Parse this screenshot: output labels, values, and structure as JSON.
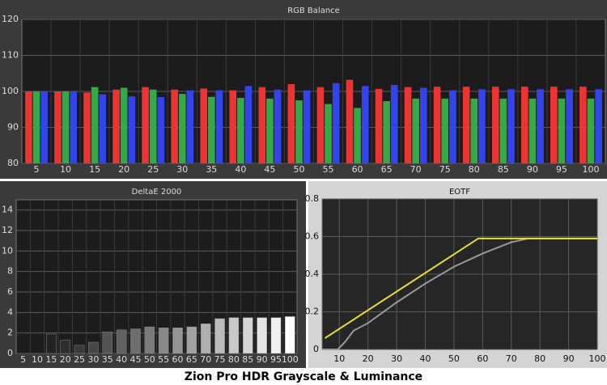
{
  "caption": "Zion Pro HDR Grayscale & Luminance",
  "chart_data": [
    {
      "type": "bar",
      "title": "RGB Balance",
      "categories": [
        "5",
        "10",
        "15",
        "20",
        "25",
        "30",
        "35",
        "40",
        "45",
        "50",
        "55",
        "60",
        "65",
        "70",
        "75",
        "80",
        "85",
        "90",
        "95",
        "100"
      ],
      "series": [
        {
          "color": "#ee3333",
          "values": [
            100,
            100,
            99.7,
            100.5,
            101.2,
            100.5,
            100.8,
            100.3,
            101.2,
            102,
            101.2,
            103.2,
            100.7,
            101.2,
            101.3,
            101.3,
            101.3,
            101.3,
            101.3,
            101.3
          ]
        },
        {
          "color": "#33aa44",
          "values": [
            100,
            100,
            101.2,
            101,
            100.5,
            99.3,
            98.5,
            98.2,
            98,
            97.5,
            96.5,
            95.4,
            97.3,
            98,
            98,
            98,
            98,
            98,
            98,
            98
          ]
        },
        {
          "color": "#3344ee",
          "values": [
            100,
            100,
            99.2,
            98.6,
            98.4,
            100.3,
            100.3,
            101.5,
            100.5,
            100.3,
            102.3,
            101.5,
            101.8,
            101,
            100.3,
            100.6,
            100.6,
            100.6,
            100.6,
            100.6
          ]
        }
      ],
      "ylim": [
        80,
        120
      ],
      "yticks": [
        80,
        90,
        100,
        110,
        120
      ],
      "grid": true
    },
    {
      "type": "bar",
      "title": "DeltaE 2000",
      "categories": [
        "5",
        "10",
        "15",
        "20",
        "25",
        "30",
        "35",
        "40",
        "45",
        "50",
        "55",
        "60",
        "65",
        "70",
        "75",
        "80",
        "85",
        "90",
        "95",
        "100"
      ],
      "values": [
        0,
        0,
        1.9,
        1.3,
        0.8,
        1.1,
        2.1,
        2.3,
        2.4,
        2.6,
        2.5,
        2.5,
        2.6,
        2.9,
        3.4,
        3.5,
        3.5,
        3.5,
        3.5,
        3.6
      ],
      "colors": [
        "#0d0d0d",
        "#1a1a1a",
        "#222222",
        "#2e2e2e",
        "#3a3a3a",
        "#474747",
        "#545454",
        "#616161",
        "#6e6e6e",
        "#7b7b7b",
        "#888888",
        "#959595",
        "#a2a2a2",
        "#afafaf",
        "#bcbcbc",
        "#c9c9c9",
        "#d6d6d6",
        "#e3e3e3",
        "#f0f0f0",
        "#ffffff"
      ],
      "ylim": [
        0,
        15
      ],
      "yticks": [
        0,
        2,
        4,
        6,
        8,
        10,
        12,
        14
      ],
      "grid": true
    },
    {
      "type": "line",
      "title": "EOTF",
      "series": [
        {
          "color": "#e8e030",
          "x": [
            5,
            58.5,
            100
          ],
          "values": [
            0.06,
            0.59,
            0.59
          ]
        },
        {
          "color": "#9a9a9a",
          "x": [
            4,
            9.5,
            12,
            15,
            20,
            30,
            40,
            50,
            60,
            70,
            76,
            100
          ],
          "values": [
            0,
            0,
            0.04,
            0.1,
            0.14,
            0.25,
            0.35,
            0.44,
            0.51,
            0.57,
            0.59,
            0.59
          ]
        }
      ],
      "xlim": [
        4,
        100
      ],
      "xticks": [
        10,
        20,
        30,
        40,
        50,
        60,
        70,
        80,
        90,
        100
      ],
      "ylim": [
        0,
        0.8
      ],
      "yticks": [
        0,
        0.2,
        0.4,
        0.6,
        0.8
      ],
      "grid": true
    }
  ]
}
